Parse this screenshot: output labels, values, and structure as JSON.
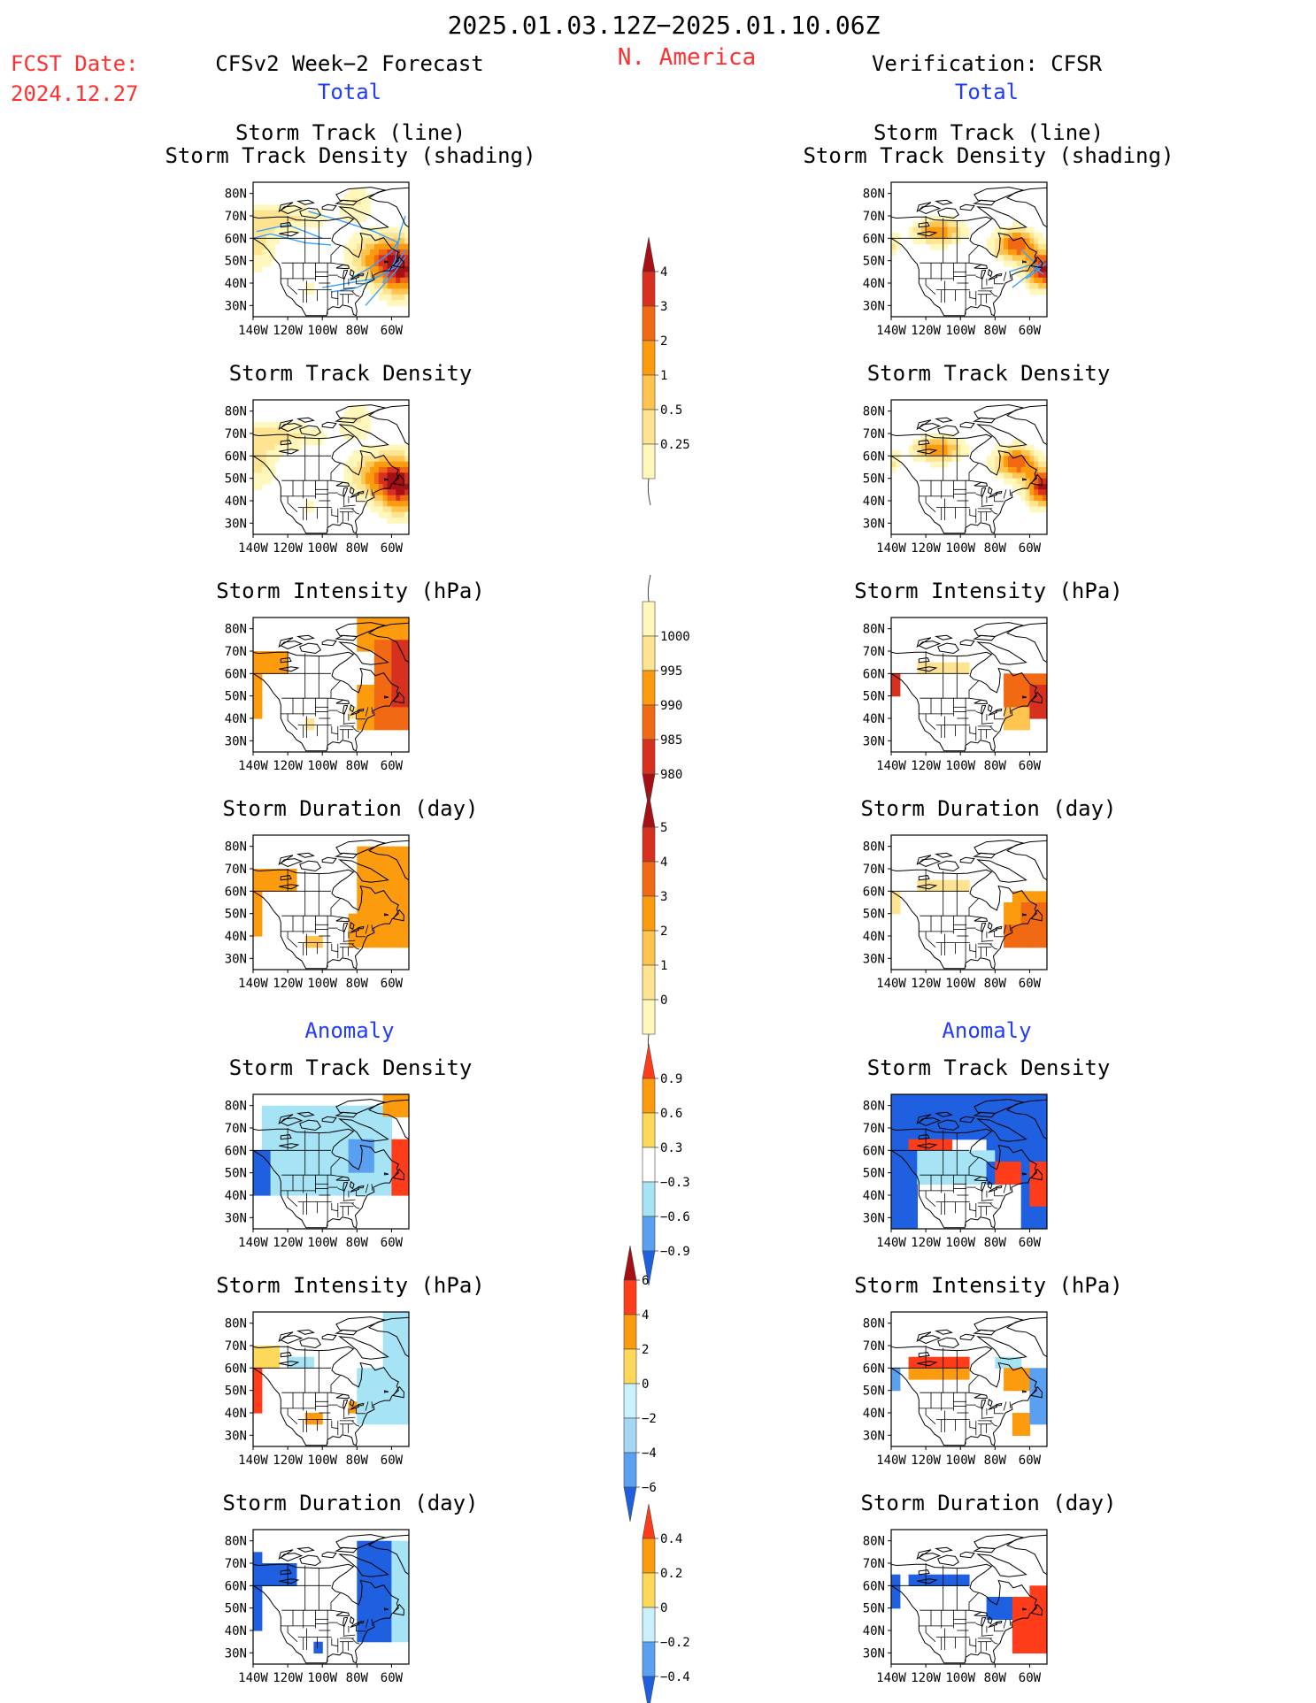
{
  "header": {
    "period": "2025.01.03.12Z−2025.01.10.06Z",
    "region": "N. America",
    "fcst_label": "FCST Date:",
    "fcst_date": "2024.12.27",
    "left_title": "CFSv2 Week−2 Forecast",
    "right_title": "Verification: CFSR",
    "total_label": "Total",
    "anomaly_label": "Anomaly"
  },
  "colors": {
    "red_text": "#ff3030",
    "blue_text": "#1f3cff",
    "land": "#ffffff",
    "coast": "#000000"
  },
  "map_axes": {
    "lat_labels": [
      "80N",
      "70N",
      "60N",
      "50N",
      "40N",
      "30N"
    ],
    "lon_labels": [
      "140W",
      "120W",
      "100W",
      "80W",
      "60W"
    ]
  },
  "panels": {
    "left": [
      {
        "title1": "Storm Track (line)",
        "title2": "Storm Track Density (shading)",
        "field": "density",
        "scheme": "warm"
      },
      {
        "title1": "Storm Track Density",
        "field": "density",
        "scheme": "warm"
      },
      {
        "title1": "Storm Intensity (hPa)",
        "field": "intensity",
        "scheme": "warm"
      },
      {
        "title1": "Storm Duration (day)",
        "field": "duration",
        "scheme": "warm"
      },
      {
        "title1": "Storm Track Density",
        "field": "density_anom",
        "scheme": "anom"
      },
      {
        "title1": "Storm Intensity (hPa)",
        "field": "intensity_anom",
        "scheme": "anom"
      },
      {
        "title1": "Storm Duration (day)",
        "field": "duration_anom",
        "scheme": "anom"
      }
    ],
    "right": [
      {
        "title1": "Storm Track (line)",
        "title2": "Storm Track Density (shading)",
        "field": "density",
        "scheme": "warm"
      },
      {
        "title1": "Storm Track Density",
        "field": "density",
        "scheme": "warm"
      },
      {
        "title1": "Storm Intensity (hPa)",
        "field": "intensity",
        "scheme": "warm"
      },
      {
        "title1": "Storm Duration (day)",
        "field": "duration",
        "scheme": "warm"
      },
      {
        "title1": "Storm Track Density",
        "field": "density_anom",
        "scheme": "anom"
      },
      {
        "title1": "Storm Intensity (hPa)",
        "field": "intensity_anom",
        "scheme": "anom"
      },
      {
        "title1": "Storm Duration (day)",
        "field": "duration_anom",
        "scheme": "anom"
      }
    ]
  },
  "colorbars": [
    {
      "id": "density",
      "labels": [
        "4",
        "3",
        "2",
        "1",
        "0.5",
        "0.25"
      ],
      "colors": [
        "#a50f15",
        "#d7301f",
        "#f16913",
        "#fd9b0f",
        "#fec44f",
        "#fee391",
        "#fff7bc"
      ],
      "top_arrow": true,
      "bottom_arrow": false
    },
    {
      "id": "intensity",
      "labels": [
        "1000",
        "995",
        "990",
        "985",
        "980"
      ],
      "colors": [
        "#fff7bc",
        "#fee391",
        "#fd9b0f",
        "#f16913",
        "#d7301f",
        "#a50f15"
      ],
      "top_arrow": false,
      "bottom_arrow": true
    },
    {
      "id": "duration",
      "labels": [
        "5",
        "4",
        "3",
        "2",
        "1",
        "0"
      ],
      "colors": [
        "#a50f15",
        "#d7301f",
        "#f16913",
        "#fd9b0f",
        "#fec44f",
        "#fee391",
        "#fff7bc"
      ],
      "top_arrow": true,
      "bottom_arrow": false
    },
    {
      "id": "density_anom",
      "labels": [
        "0.9",
        "0.6",
        "0.3",
        "−0.3",
        "−0.6",
        "−0.9"
      ],
      "colors": [
        "#ff3d1a",
        "#fd9b0f",
        "#fed85a",
        "#ffffff",
        "#a6e4f5",
        "#5aa0f0",
        "#1f60e0"
      ],
      "top_arrow": true,
      "bottom_arrow": true
    },
    {
      "id": "intensity_anom",
      "labels": [
        "6",
        "4",
        "2",
        "0",
        "−2",
        "−4",
        "−6"
      ],
      "colors": [
        "#a50f15",
        "#ff3d1a",
        "#fd9b0f",
        "#fed85a",
        "#c9f0fb",
        "#a6d8f5",
        "#5aa0f0",
        "#1f60e0"
      ],
      "top_arrow": true,
      "bottom_arrow": true
    },
    {
      "id": "duration_anom",
      "labels": [
        "0.4",
        "0.2",
        "0",
        "−0.2",
        "−0.4"
      ],
      "colors": [
        "#ff3d1a",
        "#fd9b0f",
        "#fed85a",
        "#c9f0fb",
        "#5aa0f0",
        "#1f60e0"
      ],
      "top_arrow": true,
      "bottom_arrow": true
    }
  ]
}
